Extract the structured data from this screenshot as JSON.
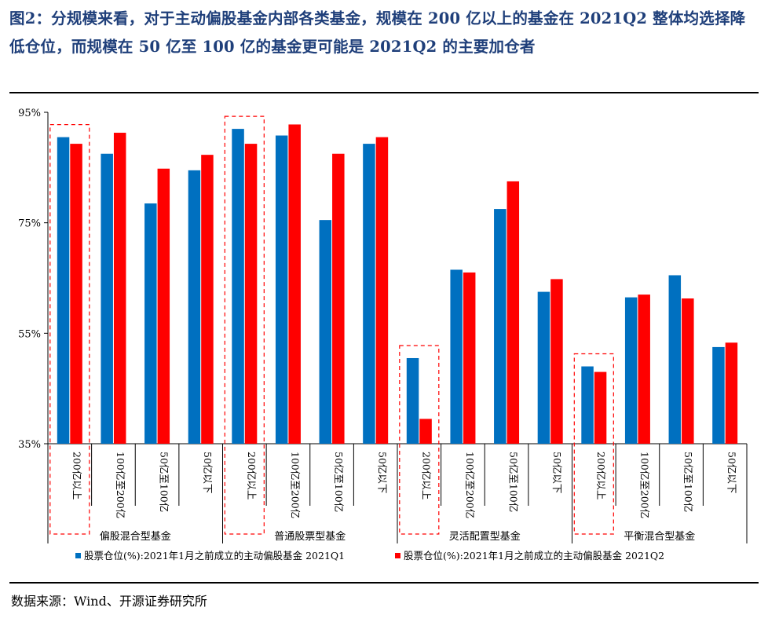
{
  "title": "图2：分规模来看，对于主动偏股基金内部各类基金，规模在 200 亿以上的基金在 2021Q2 整体均选择降低仓位，而规模在 50 亿至 100 亿的基金更可能是 2021Q2 的主要加仓者",
  "source": "数据来源：Wind、开源证券研究所",
  "colors": {
    "q1": "#0070c0",
    "q2": "#ff0000",
    "highlight": "#ff0000",
    "title": "#1f3f7a"
  },
  "chart_data": {
    "type": "bar",
    "title": "",
    "xlabel": "",
    "ylabel": "",
    "ylim": [
      35,
      95
    ],
    "yticks": [
      "35%",
      "55%",
      "75%",
      "95%"
    ],
    "ytick_values": [
      35,
      55,
      75,
      95
    ],
    "grid": false,
    "legend_position": "bottom",
    "groups": [
      {
        "name": "偏股混合型基金",
        "categories": [
          "200亿以上",
          "100亿至200亿",
          "50亿至100亿",
          "50亿以下"
        ]
      },
      {
        "name": "普通股票型基金",
        "categories": [
          "200亿以上",
          "100亿至200亿",
          "50亿至100亿",
          "50亿以下"
        ]
      },
      {
        "name": "灵活配置型基金",
        "categories": [
          "200亿以上",
          "100亿至200亿",
          "50亿至100亿",
          "50亿以下"
        ]
      },
      {
        "name": "平衡混合型基金",
        "categories": [
          "200亿以上",
          "100亿至200亿",
          "50亿至100亿",
          "50亿以下"
        ]
      }
    ],
    "series": [
      {
        "name": "股票仓位(%):2021年1月之前成立的主动偏股基金 2021Q1",
        "values": [
          90.5,
          87.5,
          78.5,
          84.5,
          92.0,
          90.8,
          75.5,
          89.3,
          50.5,
          66.5,
          77.5,
          62.5,
          49.0,
          61.5,
          65.5,
          52.5
        ]
      },
      {
        "name": "股票仓位(%):2021年1月之前成立的主动偏股基金 2021Q2",
        "values": [
          89.3,
          91.3,
          84.8,
          87.3,
          89.3,
          92.8,
          87.5,
          90.5,
          39.5,
          66.0,
          82.5,
          64.8,
          48.0,
          62.0,
          61.3,
          53.3
        ]
      }
    ],
    "highlighted_categories": [
      0,
      4,
      8,
      12
    ]
  }
}
